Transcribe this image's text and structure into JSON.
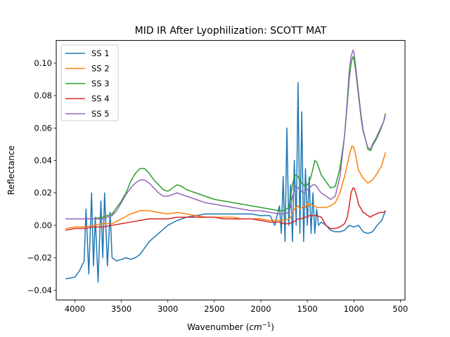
{
  "chart_data": {
    "type": "line",
    "title": "MID IR After Lyophilization: SCOTT MAT",
    "xlabel": "Wavenumber",
    "xlabel_unit_base": "cm",
    "xlabel_unit_exp": "−1",
    "ylabel": "Reflectance",
    "xlim": [
      4200,
      450
    ],
    "ylim": [
      -0.046,
      0.114
    ],
    "x_inverted": true,
    "grid": false,
    "legend_position": "top-left",
    "xticks": [
      {
        "value": 4000,
        "label": "4000"
      },
      {
        "value": 3500,
        "label": "3500"
      },
      {
        "value": 3000,
        "label": "3000"
      },
      {
        "value": 2500,
        "label": "2500"
      },
      {
        "value": 2000,
        "label": "2000"
      },
      {
        "value": 1500,
        "label": "1500"
      },
      {
        "value": 1000,
        "label": "1000"
      },
      {
        "value": 500,
        "label": "500"
      }
    ],
    "yticks": [
      {
        "value": -0.04,
        "label": "−0.04"
      },
      {
        "value": -0.02,
        "label": "−0.02"
      },
      {
        "value": 0.0,
        "label": "0.00"
      },
      {
        "value": 0.02,
        "label": "0.02"
      },
      {
        "value": 0.04,
        "label": "0.04"
      },
      {
        "value": 0.06,
        "label": "0.06"
      },
      {
        "value": 0.08,
        "label": "0.08"
      },
      {
        "value": 0.1,
        "label": "0.10"
      }
    ],
    "series": [
      {
        "name": "SS 1",
        "color": "#1f77b4",
        "x": [
          4100,
          4000,
          3950,
          3900,
          3880,
          3850,
          3820,
          3800,
          3780,
          3750,
          3720,
          3700,
          3680,
          3650,
          3620,
          3600,
          3550,
          3500,
          3450,
          3400,
          3350,
          3300,
          3250,
          3200,
          3100,
          3000,
          2900,
          2800,
          2700,
          2600,
          2500,
          2400,
          2300,
          2200,
          2100,
          2000,
          1900,
          1850,
          1800,
          1780,
          1760,
          1740,
          1720,
          1700,
          1680,
          1660,
          1640,
          1620,
          1600,
          1580,
          1560,
          1540,
          1520,
          1500,
          1480,
          1460,
          1440,
          1420,
          1400,
          1380,
          1350,
          1300,
          1250,
          1200,
          1150,
          1100,
          1050,
          1000,
          950,
          900,
          850,
          800,
          750,
          700,
          660
        ],
        "y": [
          -0.033,
          -0.032,
          -0.028,
          -0.022,
          0.01,
          -0.03,
          0.02,
          -0.025,
          0.005,
          -0.035,
          0.015,
          -0.02,
          0.02,
          -0.025,
          0.008,
          -0.02,
          -0.022,
          -0.021,
          -0.02,
          -0.021,
          -0.02,
          -0.018,
          -0.014,
          -0.01,
          -0.005,
          0.0,
          0.003,
          0.005,
          0.006,
          0.007,
          0.007,
          0.007,
          0.007,
          0.007,
          0.007,
          0.006,
          0.006,
          0.0,
          0.012,
          -0.005,
          0.03,
          -0.01,
          0.06,
          0.0,
          0.025,
          -0.01,
          0.04,
          0.0,
          0.088,
          -0.005,
          0.07,
          -0.01,
          0.035,
          0.0,
          0.03,
          -0.005,
          0.02,
          -0.005,
          0.01,
          0.0,
          0.002,
          0.0,
          -0.003,
          -0.004,
          -0.004,
          -0.003,
          0.0,
          -0.001,
          0.0,
          -0.004,
          -0.005,
          -0.004,
          0.0,
          0.003,
          0.009
        ]
      },
      {
        "name": "SS 2",
        "color": "#ff7f0e",
        "x": [
          4100,
          4000,
          3900,
          3800,
          3700,
          3600,
          3500,
          3400,
          3300,
          3200,
          3100,
          3000,
          2900,
          2800,
          2700,
          2600,
          2500,
          2400,
          2300,
          2200,
          2100,
          2000,
          1900,
          1800,
          1750,
          1700,
          1680,
          1660,
          1640,
          1620,
          1600,
          1580,
          1560,
          1540,
          1520,
          1500,
          1480,
          1460,
          1440,
          1420,
          1400,
          1350,
          1300,
          1250,
          1200,
          1150,
          1100,
          1050,
          1020,
          1000,
          980,
          950,
          900,
          850,
          800,
          750,
          700,
          660
        ],
        "y": [
          -0.002,
          -0.001,
          -0.001,
          0.0,
          0.001,
          0.001,
          0.004,
          0.007,
          0.009,
          0.009,
          0.008,
          0.007,
          0.008,
          0.007,
          0.006,
          0.005,
          0.005,
          0.005,
          0.005,
          0.004,
          0.004,
          0.004,
          0.003,
          0.003,
          0.003,
          0.004,
          0.005,
          0.008,
          0.01,
          0.011,
          0.012,
          0.01,
          0.011,
          0.012,
          0.011,
          0.014,
          0.012,
          0.013,
          0.012,
          0.012,
          0.011,
          0.011,
          0.011,
          0.012,
          0.014,
          0.02,
          0.03,
          0.043,
          0.049,
          0.048,
          0.043,
          0.034,
          0.029,
          0.026,
          0.028,
          0.032,
          0.037,
          0.045
        ]
      },
      {
        "name": "SS 3",
        "color": "#2ca02c",
        "x": [
          4100,
          4000,
          3900,
          3800,
          3700,
          3600,
          3500,
          3450,
          3400,
          3350,
          3300,
          3250,
          3200,
          3150,
          3100,
          3050,
          3000,
          2950,
          2900,
          2850,
          2800,
          2700,
          2600,
          2500,
          2400,
          2300,
          2200,
          2100,
          2000,
          1900,
          1800,
          1750,
          1700,
          1680,
          1660,
          1640,
          1620,
          1600,
          1580,
          1560,
          1540,
          1520,
          1500,
          1480,
          1460,
          1440,
          1420,
          1400,
          1380,
          1350,
          1300,
          1250,
          1200,
          1150,
          1100,
          1070,
          1050,
          1030,
          1010,
          1000,
          980,
          950,
          920,
          900,
          870,
          850,
          820,
          800,
          760,
          720,
          680,
          660
        ],
        "y": [
          0.004,
          0.004,
          0.004,
          0.004,
          0.005,
          0.007,
          0.015,
          0.02,
          0.027,
          0.032,
          0.035,
          0.035,
          0.032,
          0.028,
          0.025,
          0.022,
          0.021,
          0.023,
          0.025,
          0.024,
          0.022,
          0.02,
          0.018,
          0.016,
          0.015,
          0.014,
          0.013,
          0.012,
          0.011,
          0.01,
          0.009,
          0.009,
          0.011,
          0.018,
          0.025,
          0.03,
          0.031,
          0.03,
          0.028,
          0.026,
          0.025,
          0.024,
          0.025,
          0.027,
          0.03,
          0.035,
          0.04,
          0.039,
          0.036,
          0.031,
          0.027,
          0.023,
          0.024,
          0.035,
          0.055,
          0.075,
          0.09,
          0.1,
          0.104,
          0.103,
          0.095,
          0.08,
          0.065,
          0.058,
          0.052,
          0.047,
          0.046,
          0.049,
          0.053,
          0.058,
          0.064,
          0.069
        ]
      },
      {
        "name": "SS 4",
        "color": "#d62728",
        "x": [
          4100,
          4000,
          3900,
          3800,
          3700,
          3600,
          3500,
          3400,
          3300,
          3200,
          3100,
          3000,
          2900,
          2800,
          2700,
          2600,
          2500,
          2400,
          2300,
          2200,
          2100,
          2000,
          1900,
          1800,
          1750,
          1700,
          1650,
          1600,
          1580,
          1560,
          1540,
          1520,
          1500,
          1480,
          1460,
          1440,
          1420,
          1400,
          1350,
          1300,
          1250,
          1200,
          1150,
          1100,
          1070,
          1050,
          1030,
          1010,
          1000,
          990,
          970,
          950,
          920,
          900,
          870,
          850,
          820,
          800,
          760,
          720,
          680,
          660
        ],
        "y": [
          -0.003,
          -0.002,
          -0.002,
          -0.001,
          -0.001,
          0.0,
          0.001,
          0.002,
          0.003,
          0.004,
          0.004,
          0.004,
          0.005,
          0.005,
          0.005,
          0.005,
          0.005,
          0.004,
          0.004,
          0.004,
          0.004,
          0.003,
          0.002,
          0.002,
          0.001,
          0.001,
          0.002,
          0.004,
          0.004,
          0.004,
          0.005,
          0.005,
          0.005,
          0.006,
          0.006,
          0.006,
          0.006,
          0.006,
          0.005,
          0.0,
          -0.002,
          -0.002,
          -0.001,
          0.001,
          0.005,
          0.012,
          0.02,
          0.023,
          0.023,
          0.022,
          0.018,
          0.013,
          0.01,
          0.008,
          0.007,
          0.006,
          0.005,
          0.006,
          0.007,
          0.008,
          0.008,
          0.009
        ]
      },
      {
        "name": "SS 5",
        "color": "#9467bd",
        "x": [
          4100,
          4000,
          3900,
          3800,
          3700,
          3600,
          3550,
          3500,
          3450,
          3400,
          3350,
          3300,
          3250,
          3200,
          3150,
          3100,
          3050,
          3000,
          2950,
          2900,
          2850,
          2800,
          2700,
          2600,
          2500,
          2400,
          2300,
          2200,
          2100,
          2000,
          1900,
          1800,
          1750,
          1700,
          1680,
          1660,
          1640,
          1620,
          1600,
          1580,
          1560,
          1540,
          1520,
          1500,
          1480,
          1460,
          1440,
          1420,
          1400,
          1380,
          1350,
          1300,
          1250,
          1200,
          1150,
          1100,
          1070,
          1050,
          1030,
          1010,
          1000,
          980,
          950,
          920,
          900,
          870,
          850,
          820,
          800,
          760,
          720,
          680,
          660
        ],
        "y": [
          0.004,
          0.004,
          0.004,
          0.004,
          0.004,
          0.006,
          0.009,
          0.014,
          0.019,
          0.023,
          0.026,
          0.028,
          0.028,
          0.026,
          0.023,
          0.02,
          0.018,
          0.018,
          0.019,
          0.02,
          0.019,
          0.018,
          0.016,
          0.014,
          0.013,
          0.012,
          0.011,
          0.01,
          0.009,
          0.009,
          0.008,
          0.007,
          0.007,
          0.008,
          0.012,
          0.018,
          0.022,
          0.024,
          0.023,
          0.022,
          0.021,
          0.02,
          0.021,
          0.022,
          0.023,
          0.024,
          0.025,
          0.025,
          0.024,
          0.022,
          0.02,
          0.018,
          0.016,
          0.018,
          0.03,
          0.055,
          0.078,
          0.095,
          0.104,
          0.108,
          0.107,
          0.098,
          0.082,
          0.067,
          0.059,
          0.052,
          0.048,
          0.047,
          0.05,
          0.054,
          0.059,
          0.064,
          0.068
        ]
      }
    ]
  }
}
